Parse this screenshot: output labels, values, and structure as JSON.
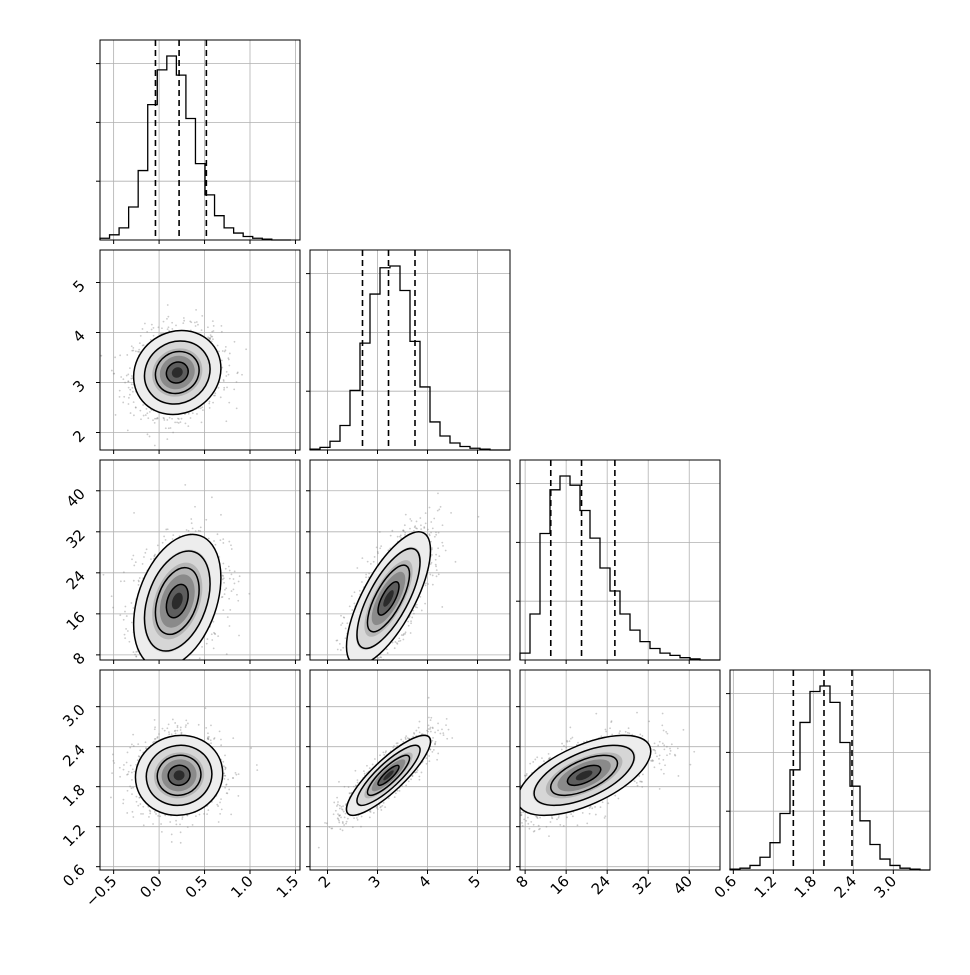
{
  "chart_data": {
    "type": "corner",
    "parameters": [
      {
        "range": [
          -0.65,
          1.55
        ],
        "ticks": [
          -0.5,
          0.0,
          0.5,
          1.0,
          1.5
        ],
        "tick_labels": [
          "−0.5",
          "0.0",
          "0.5",
          "1.0",
          "1.5"
        ],
        "quantiles": [
          -0.04,
          0.22,
          0.52
        ],
        "hist_bins": [
          -0.65,
          1.45
        ],
        "hist_counts": [
          2,
          6,
          14,
          38,
          80,
          156,
          196,
          212,
          190,
          140,
          88,
          52,
          28,
          14,
          8,
          4,
          2,
          1,
          0,
          0
        ]
      },
      {
        "range": [
          1.65,
          5.65
        ],
        "ticks": [
          2,
          3,
          4,
          5
        ],
        "tick_labels": [
          "2",
          "3",
          "4",
          "5"
        ],
        "quantiles": [
          2.7,
          3.22,
          3.75
        ],
        "hist_bins": [
          1.65,
          5.65
        ],
        "hist_counts": [
          1,
          3,
          10,
          28,
          68,
          122,
          178,
          208,
          210,
          182,
          124,
          72,
          32,
          16,
          8,
          4,
          2,
          1,
          0,
          0
        ]
      },
      {
        "range": [
          7.0,
          46.0
        ],
        "ticks": [
          8,
          16,
          24,
          32,
          40
        ],
        "tick_labels": [
          "8",
          "16",
          "24",
          "32",
          "40"
        ],
        "quantiles": [
          13.0,
          19.0,
          25.5
        ],
        "hist_bins": [
          7.0,
          46.0
        ],
        "hist_counts": [
          6,
          40,
          110,
          148,
          160,
          152,
          130,
          106,
          80,
          60,
          40,
          26,
          16,
          10,
          6,
          4,
          2,
          1,
          0,
          0
        ]
      },
      {
        "range": [
          0.55,
          3.55
        ],
        "ticks": [
          0.6,
          1.2,
          1.8,
          2.4,
          3.0
        ],
        "tick_labels": [
          "0.6",
          "1.2",
          "1.8",
          "2.4",
          "3.0"
        ],
        "quantiles": [
          1.5,
          1.96,
          2.38
        ],
        "hist_bins": [
          0.55,
          3.55
        ],
        "hist_counts": [
          1,
          2,
          5,
          14,
          30,
          62,
          110,
          162,
          196,
          202,
          184,
          140,
          92,
          54,
          28,
          12,
          5,
          2,
          1,
          0
        ]
      }
    ],
    "pairs": [
      {
        "x": 0,
        "y": 1,
        "center": [
          0.2,
          3.2
        ],
        "sd": [
          0.24,
          0.42
        ],
        "corr": 0.1
      },
      {
        "x": 0,
        "y": 2,
        "center": [
          0.2,
          18.5
        ],
        "sd": [
          0.24,
          6.5
        ],
        "corr": 0.35
      },
      {
        "x": 1,
        "y": 2,
        "center": [
          3.22,
          19.0
        ],
        "sd": [
          0.42,
          6.5
        ],
        "corr": 0.72
      },
      {
        "x": 0,
        "y": 3,
        "center": [
          0.22,
          1.97
        ],
        "sd": [
          0.24,
          0.3
        ],
        "corr": 0.05
      },
      {
        "x": 1,
        "y": 3,
        "center": [
          3.22,
          1.97
        ],
        "sd": [
          0.42,
          0.3
        ],
        "corr": 0.85
      },
      {
        "x": 2,
        "y": 3,
        "center": [
          19.5,
          1.97
        ],
        "sd": [
          6.5,
          0.3
        ],
        "corr": 0.6
      }
    ],
    "colors": {
      "line": "#000000",
      "grid": "#b0b0b0",
      "scatter": "#8c8c8c"
    },
    "grid": true
  }
}
